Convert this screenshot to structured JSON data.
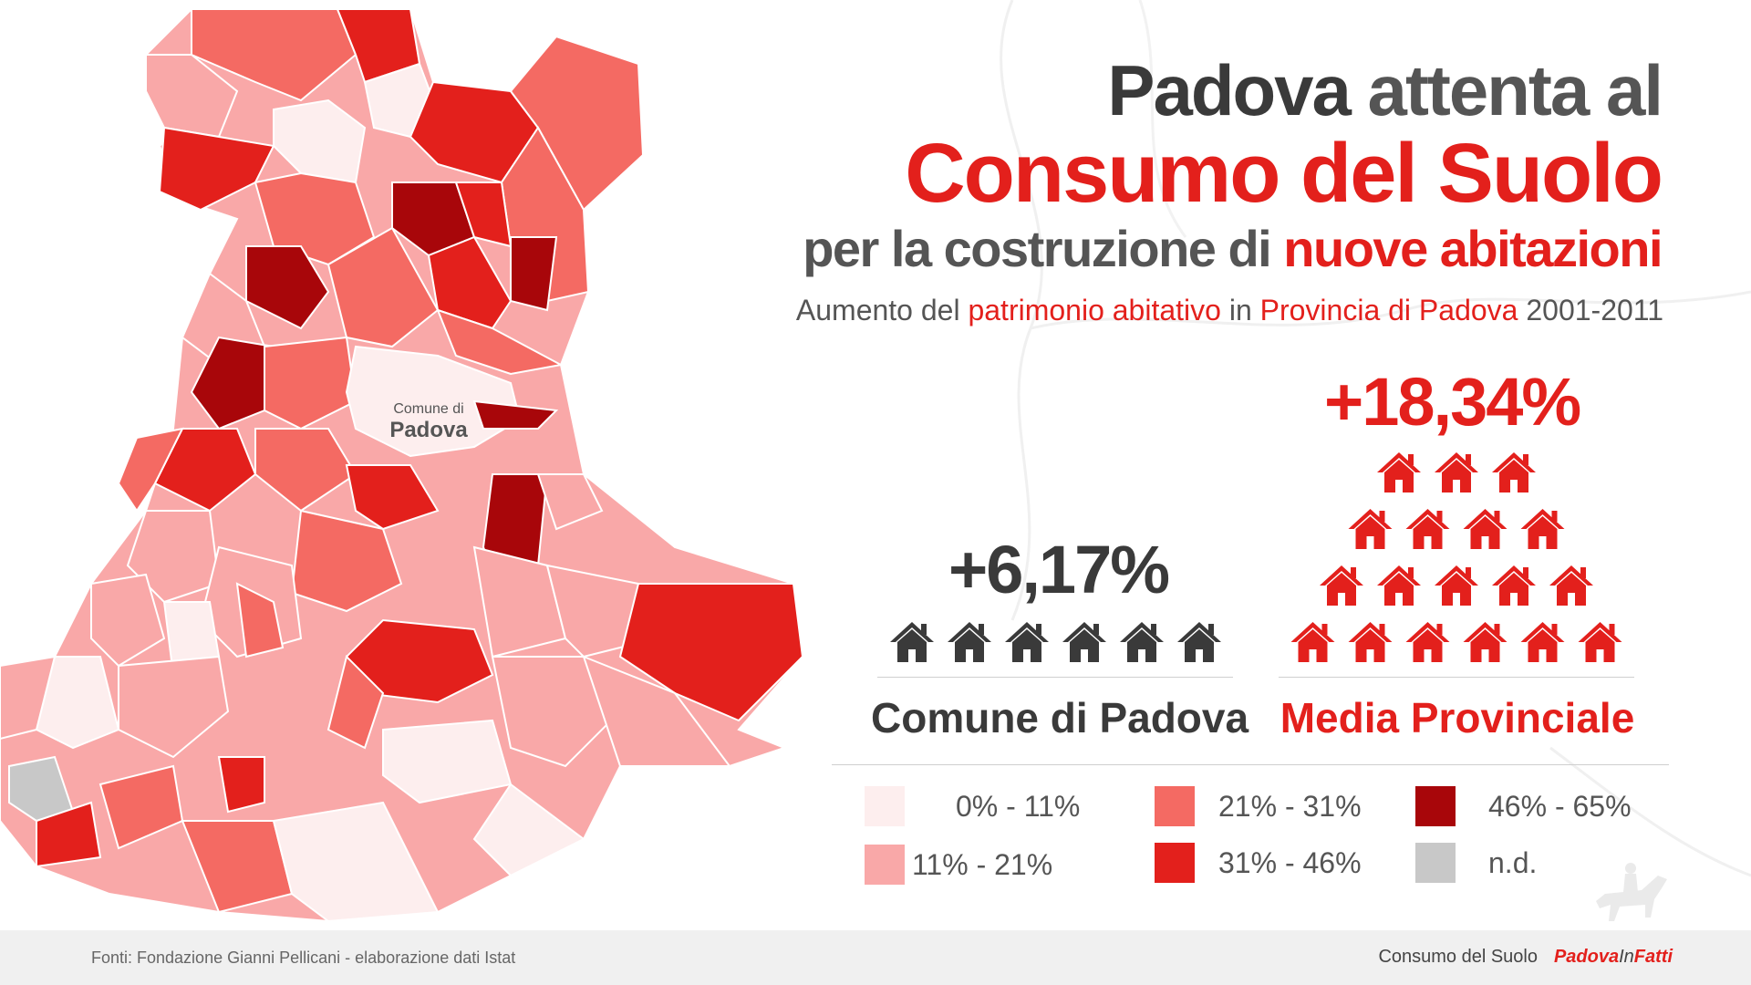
{
  "title": {
    "line1_dark": "Padova",
    "line1_rest": " attenta al",
    "line2": "Consumo del Suolo",
    "line3_part1": "per la costruzione di ",
    "line3_red": "nuove abitazioni",
    "subtitle_part1": "Aumento del ",
    "subtitle_red1": "patrimonio abitativo",
    "subtitle_part2": " in ",
    "subtitle_red2": "Provincia di Padova",
    "subtitle_part3": " 2001-2011"
  },
  "map": {
    "label_small": "Comune di",
    "label_big": "Padova"
  },
  "comparison": [
    {
      "name": "Comune di Padova",
      "value": "+6,17%",
      "houses": 6,
      "color": "#3a3a3a"
    },
    {
      "name": "Media Provinciale",
      "value": "+18,34%",
      "houses": 18,
      "color": "#e3201c"
    }
  ],
  "legend": [
    {
      "label": "0% - 11%",
      "color": "#fdeeee"
    },
    {
      "label": "11% - 21%",
      "color": "#f9a8a8"
    },
    {
      "label": "21% - 31%",
      "color": "#f46a63"
    },
    {
      "label": "31% - 46%",
      "color": "#e3201c"
    },
    {
      "label": "46% - 65%",
      "color": "#a8060a"
    },
    {
      "label": "n.d.",
      "color": "#c8c8c8"
    }
  ],
  "footer": {
    "source": "Fonti: Fondazione Gianni Pellicani - elaborazione dati Istat",
    "topic": "Consumo del Suolo",
    "brand_part1": "Padova",
    "brand_part2": "In",
    "brand_part3": "Fatti"
  },
  "icons": [
    "house-icon",
    "horse-rider-icon"
  ]
}
